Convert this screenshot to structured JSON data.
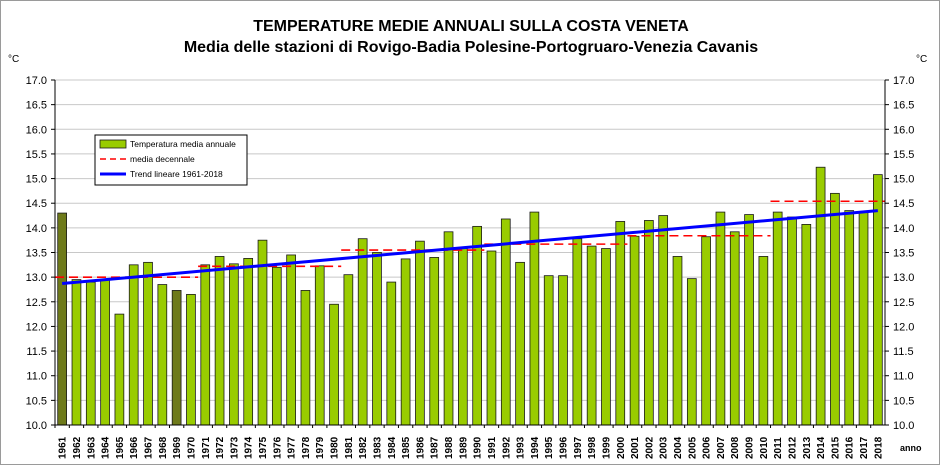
{
  "chart_data": {
    "type": "bar",
    "title": "TEMPERATURE MEDIE ANNUALI SULLA COSTA VENETA",
    "subtitle": "Media delle stazioni di Rovigo-Badia Polesine-Portogruaro-Venezia Cavanis",
    "ylabel_left": "°C",
    "ylabel_right": "°C",
    "xlabel": "anno",
    "ylim": [
      10.0,
      17.0
    ],
    "yticks": [
      "10.0",
      "10.5",
      "11.0",
      "11.5",
      "12.0",
      "12.5",
      "13.0",
      "13.5",
      "14.0",
      "14.5",
      "15.0",
      "15.5",
      "16.0",
      "16.5",
      "17.0"
    ],
    "grid": true,
    "legend_position": "upper-left",
    "categories": [
      "1961",
      "1962",
      "1963",
      "1964",
      "1965",
      "1966",
      "1967",
      "1968",
      "1969",
      "1970",
      "1971",
      "1972",
      "1973",
      "1974",
      "1975",
      "1976",
      "1977",
      "1978",
      "1979",
      "1980",
      "1981",
      "1982",
      "1983",
      "1984",
      "1985",
      "1986",
      "1987",
      "1988",
      "1989",
      "1990",
      "1991",
      "1992",
      "1993",
      "1994",
      "1995",
      "1996",
      "1997",
      "1998",
      "1999",
      "2000",
      "2001",
      "2002",
      "2003",
      "2004",
      "2005",
      "2006",
      "2007",
      "2008",
      "2009",
      "2010",
      "2011",
      "2012",
      "2013",
      "2014",
      "2015",
      "2016",
      "2017",
      "2018"
    ],
    "series": [
      {
        "name": "Temperatura media annuale",
        "type": "bar",
        "color": "#99cc00",
        "highlight_color": "#6e7a1a",
        "highlighted_categories": [
          "1961",
          "1969"
        ],
        "values": [
          14.3,
          12.95,
          12.9,
          12.95,
          12.25,
          13.25,
          13.3,
          12.85,
          12.73,
          12.65,
          13.25,
          13.42,
          13.27,
          13.38,
          13.75,
          13.2,
          13.45,
          12.73,
          13.23,
          12.45,
          13.05,
          13.78,
          13.5,
          12.9,
          13.37,
          13.73,
          13.4,
          13.92,
          13.58,
          14.03,
          13.53,
          14.18,
          13.3,
          14.32,
          13.03,
          13.03,
          13.78,
          13.63,
          13.58,
          14.13,
          13.83,
          14.15,
          14.25,
          13.42,
          12.97,
          13.82,
          14.32,
          13.92,
          14.27,
          13.42,
          14.32,
          14.22,
          14.07,
          15.23,
          14.7,
          14.35,
          14.33,
          15.08
        ]
      },
      {
        "name": "media decennale",
        "type": "dashed-step",
        "color": "#ff0000",
        "segments": [
          {
            "from": "1961",
            "to": "1970",
            "value": 13.0
          },
          {
            "from": "1971",
            "to": "1980",
            "value": 13.22
          },
          {
            "from": "1981",
            "to": "1990",
            "value": 13.55
          },
          {
            "from": "1991",
            "to": "2000",
            "value": 13.67
          },
          {
            "from": "2001",
            "to": "2010",
            "value": 13.84
          },
          {
            "from": "2011",
            "to": "2018",
            "value": 14.54
          }
        ]
      },
      {
        "name": "Trend lineare 1961-2018",
        "type": "line",
        "color": "#0000ff",
        "start": {
          "x": "1961",
          "y": 12.87
        },
        "end": {
          "x": "2018",
          "y": 14.35
        }
      }
    ]
  }
}
